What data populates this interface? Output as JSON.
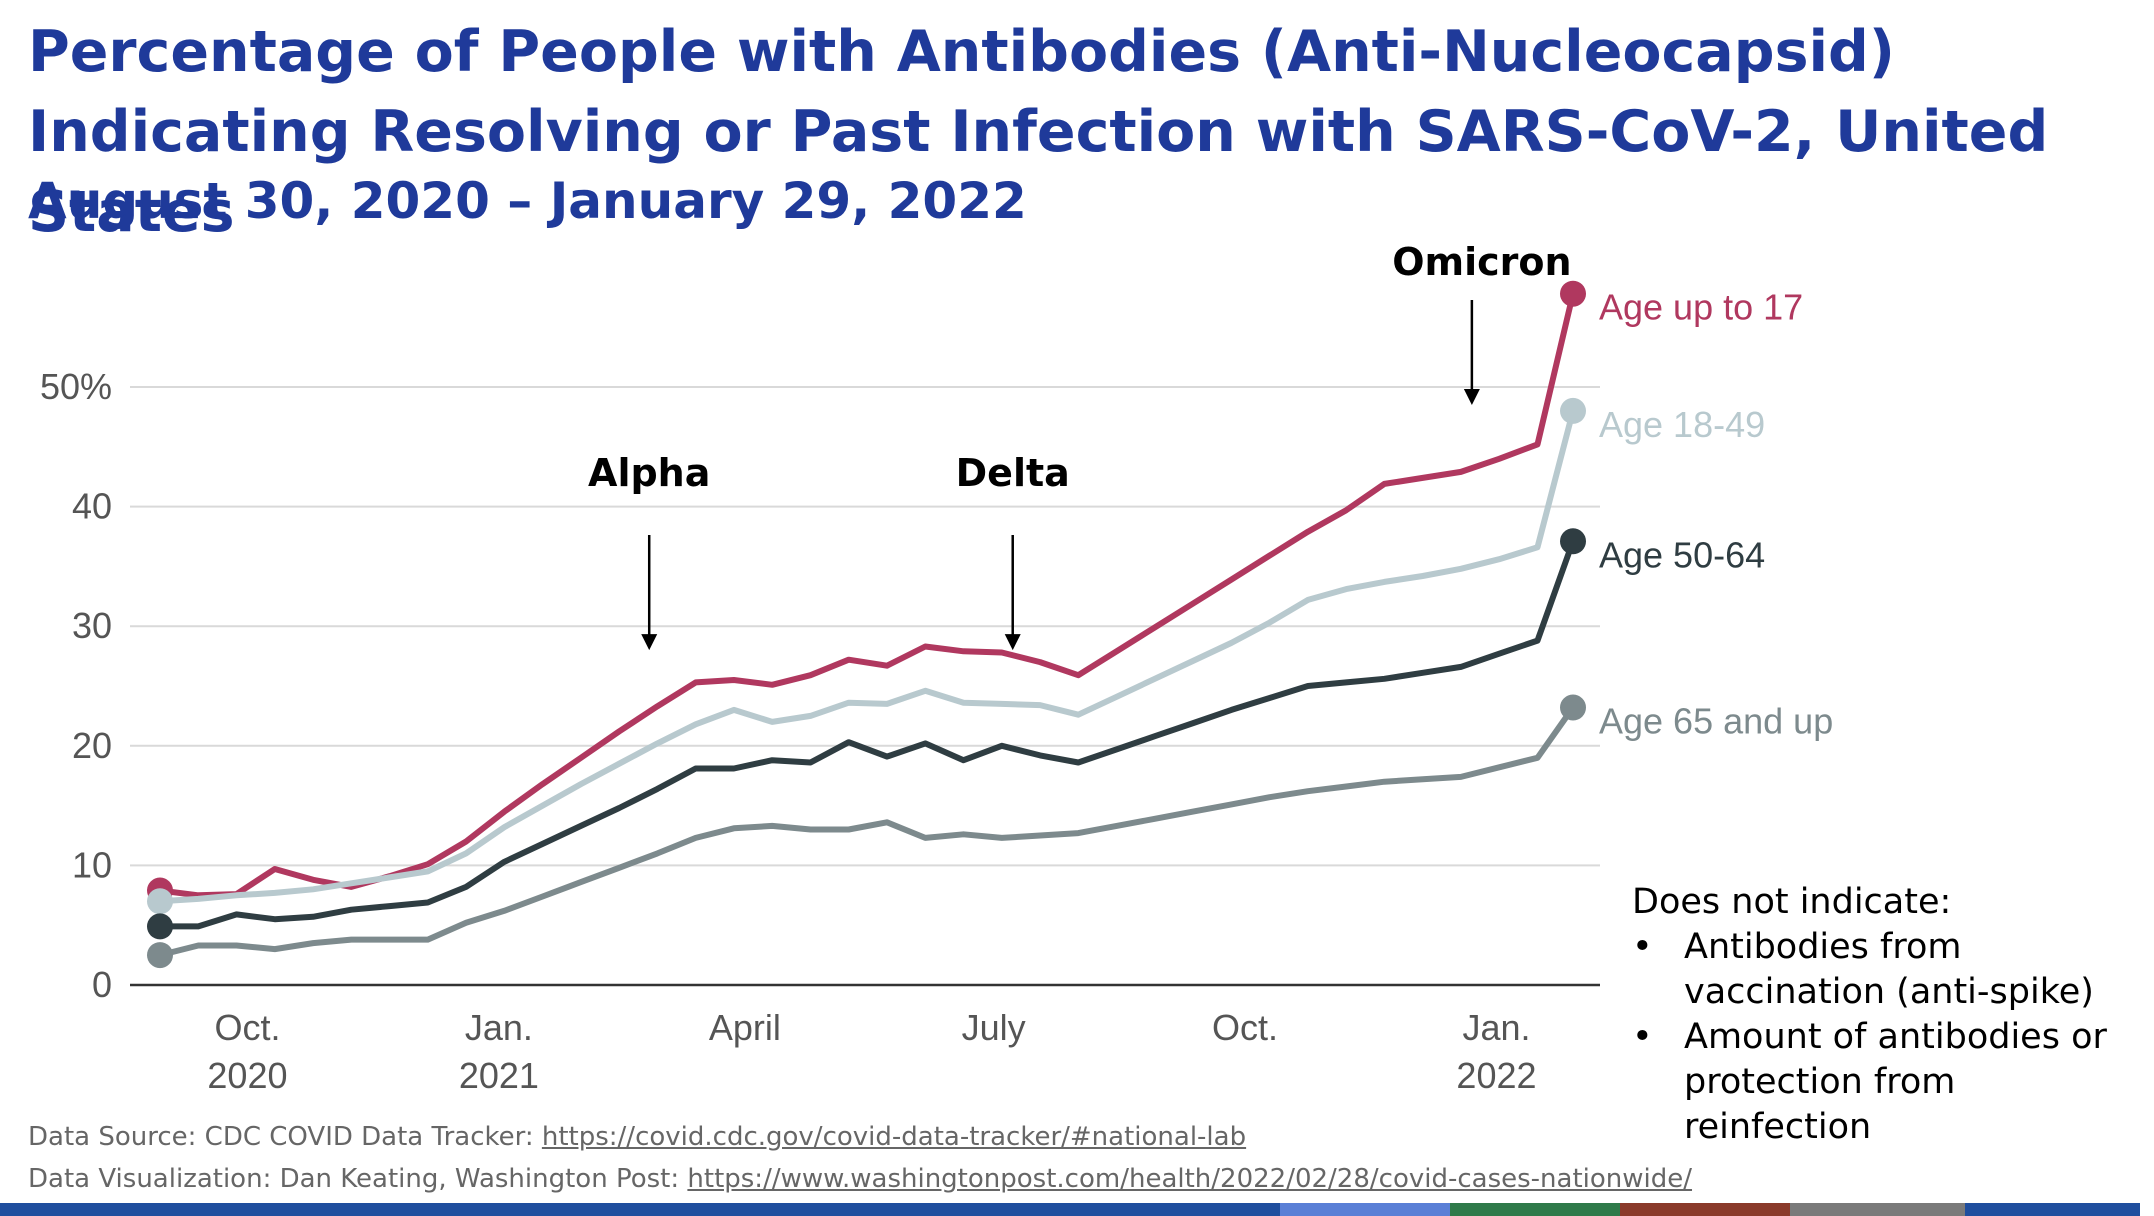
{
  "title": "Percentage of People with Antibodies (Anti-Nucleocapsid) Indicating Resolving or Past Infection with SARS-CoV-2, United States",
  "subtitle": "August 30, 2020 – January 29, 2022",
  "colors": {
    "title": "#1f3a9a",
    "age_up_to_17": "#b0385f",
    "age_18_49": "#b8c9ce",
    "age_50_64": "#2f3d42",
    "age_65_up": "#7d8a8d",
    "grid": "#d9d9d9",
    "axis": "#333333",
    "tick_text": "#555555"
  },
  "chart_data": {
    "type": "line",
    "ylim": [
      0,
      50
    ],
    "grid": true,
    "yticks": [
      {
        "value": 0,
        "label": "0"
      },
      {
        "value": 10,
        "label": "10"
      },
      {
        "value": 20,
        "label": "20"
      },
      {
        "value": 30,
        "label": "30"
      },
      {
        "value": 40,
        "label": "40"
      },
      {
        "value": 50,
        "label": "50%"
      }
    ],
    "xticks": [
      {
        "date": "2020-10-01",
        "label": "Oct.",
        "year": "2020"
      },
      {
        "date": "2021-01-01",
        "label": "Jan.",
        "year": "2021"
      },
      {
        "date": "2021-04-01",
        "label": "April",
        "year": ""
      },
      {
        "date": "2021-07-01",
        "label": "July",
        "year": ""
      },
      {
        "date": "2021-10-01",
        "label": "Oct.",
        "year": ""
      },
      {
        "date": "2022-01-01",
        "label": "Jan.",
        "year": "2022"
      }
    ],
    "x": [
      "2020-08-30",
      "2020-09-13",
      "2020-09-27",
      "2020-10-11",
      "2020-10-25",
      "2020-11-08",
      "2020-11-22",
      "2020-12-06",
      "2020-12-20",
      "2021-01-03",
      "2021-01-17",
      "2021-01-31",
      "2021-02-14",
      "2021-02-28",
      "2021-03-14",
      "2021-03-28",
      "2021-04-11",
      "2021-04-25",
      "2021-05-09",
      "2021-05-23",
      "2021-06-06",
      "2021-06-20",
      "2021-07-04",
      "2021-07-18",
      "2021-08-01",
      "2021-08-15",
      "2021-08-29",
      "2021-09-12",
      "2021-09-26",
      "2021-10-10",
      "2021-10-24",
      "2021-11-07",
      "2021-11-21",
      "2021-12-05",
      "2021-12-19",
      "2022-01-02",
      "2022-01-16",
      "2022-01-29"
    ],
    "series": [
      {
        "name": "Age up to 17",
        "color_key": "age_up_to_17",
        "values": [
          7.9,
          7.5,
          7.6,
          9.7,
          8.8,
          8.2,
          9.1,
          10.1,
          12.0,
          14.5,
          16.8,
          19.0,
          21.2,
          23.3,
          25.3,
          25.5,
          25.1,
          25.9,
          27.2,
          26.7,
          28.3,
          27.9,
          27.8,
          27.0,
          25.9,
          27.9,
          29.9,
          31.9,
          33.9,
          35.9,
          37.9,
          39.7,
          41.9,
          42.4,
          42.9,
          44.0,
          45.2,
          57.8
        ]
      },
      {
        "name": "Age 18-49",
        "color_key": "age_18_49",
        "values": [
          7.0,
          7.2,
          7.5,
          7.7,
          8.0,
          8.5,
          9.0,
          9.5,
          11.0,
          13.2,
          15.0,
          16.8,
          18.5,
          20.2,
          21.8,
          23.0,
          22.0,
          22.5,
          23.6,
          23.5,
          24.6,
          23.6,
          23.5,
          23.4,
          22.6,
          24.1,
          25.6,
          27.1,
          28.6,
          30.3,
          32.2,
          33.1,
          33.7,
          34.2,
          34.8,
          35.6,
          36.6,
          48.0
        ]
      },
      {
        "name": "Age 50-64",
        "color_key": "age_50_64",
        "values": [
          4.9,
          4.9,
          5.9,
          5.5,
          5.7,
          6.3,
          6.6,
          6.9,
          8.2,
          10.3,
          11.8,
          13.3,
          14.8,
          16.4,
          18.1,
          18.1,
          18.8,
          18.6,
          20.3,
          19.1,
          20.2,
          18.8,
          20.0,
          19.2,
          18.6,
          19.7,
          20.8,
          21.9,
          23.0,
          24.0,
          25.0,
          25.3,
          25.6,
          26.1,
          26.6,
          27.7,
          28.8,
          37.1
        ]
      },
      {
        "name": "Age 65 and up",
        "color_key": "age_65_up",
        "values": [
          2.5,
          3.3,
          3.3,
          3.0,
          3.5,
          3.8,
          3.8,
          3.8,
          5.2,
          6.2,
          7.4,
          8.6,
          9.8,
          11.0,
          12.3,
          13.1,
          13.3,
          13.0,
          13.0,
          13.6,
          12.3,
          12.6,
          12.3,
          12.5,
          12.7,
          13.3,
          13.9,
          14.5,
          15.1,
          15.7,
          16.2,
          16.6,
          17.0,
          17.2,
          17.4,
          18.2,
          19.0,
          23.2
        ]
      }
    ],
    "annotations": [
      {
        "label": "Alpha",
        "date": "2021-02-25",
        "arrow_to": 28.0
      },
      {
        "label": "Delta",
        "date": "2021-07-08",
        "arrow_to": 28.0
      },
      {
        "label": "Omicron",
        "date": "2021-12-23",
        "arrow_to": 48.5
      }
    ]
  },
  "note": {
    "heading": "Does not indicate:",
    "bullet": "•",
    "items": [
      "Antibodies from vaccination (anti-spike)",
      "Amount of antibodies or protection from reinfection"
    ]
  },
  "sources": {
    "source_label": "Data Source: CDC COVID Data Tracker: ",
    "source_link": "https://covid.cdc.gov/covid-data-tracker/#national-lab",
    "viz_label": "Data Visualization: Dan Keating, Washington Post: ",
    "viz_link": "https://www.washingtonpost.com/health/2022/02/28/covid-cases-nationwide/"
  },
  "footer_colors": [
    "#1f4e9e",
    "#1f4e9e",
    "#1f4e9e",
    "#1f4e9e",
    "#1f4e9e",
    "#1f4e9e",
    "#5a7fd6",
    "#2f7a4a",
    "#8a3a2a",
    "#7a7a7a",
    "#1f4e9e"
  ]
}
